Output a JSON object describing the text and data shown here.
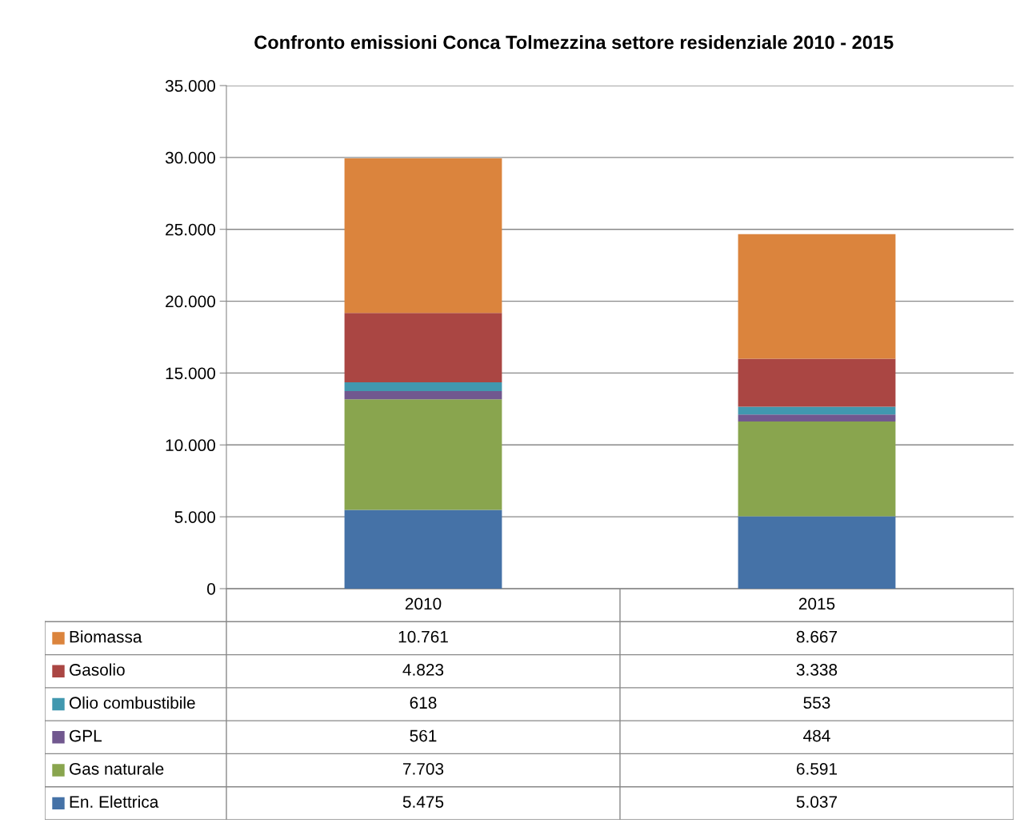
{
  "chart_data": {
    "type": "bar",
    "title": "Confronto emissioni Conca Tolmezzina settore residenziale 2010 - 2015",
    "categories": [
      "2010",
      "2015"
    ],
    "stacked": true,
    "series": [
      {
        "name": "En. Elettrica",
        "color": "#4572a7",
        "values": [
          5475,
          5037
        ],
        "value_labels": [
          "5.475",
          "5.037"
        ]
      },
      {
        "name": "Gas naturale",
        "color": "#89a54e",
        "values": [
          7703,
          6591
        ],
        "value_labels": [
          "7.703",
          "6.591"
        ]
      },
      {
        "name": "GPL",
        "color": "#71588f",
        "values": [
          561,
          484
        ],
        "value_labels": [
          "561",
          "484"
        ]
      },
      {
        "name": "Olio combustibile",
        "color": "#4198af",
        "values": [
          618,
          553
        ],
        "value_labels": [
          "618",
          "553"
        ]
      },
      {
        "name": "Gasolio",
        "color": "#aa4643",
        "values": [
          4823,
          3338
        ],
        "value_labels": [
          "4.823",
          "3.338"
        ]
      },
      {
        "name": "Biomassa",
        "color": "#db843d",
        "values": [
          10761,
          8667
        ],
        "value_labels": [
          "10.761",
          "8.667"
        ]
      }
    ],
    "ylim": [
      0,
      35000
    ],
    "yticks": [
      {
        "value": 0,
        "label": "0"
      },
      {
        "value": 5000,
        "label": "5.000"
      },
      {
        "value": 10000,
        "label": "10.000"
      },
      {
        "value": 15000,
        "label": "15.000"
      },
      {
        "value": 20000,
        "label": "20.000"
      },
      {
        "value": 25000,
        "label": "25.000"
      },
      {
        "value": 30000,
        "label": "30.000"
      },
      {
        "value": 35000,
        "label": "35.000"
      }
    ],
    "grid": "y",
    "legend": "bottom"
  }
}
